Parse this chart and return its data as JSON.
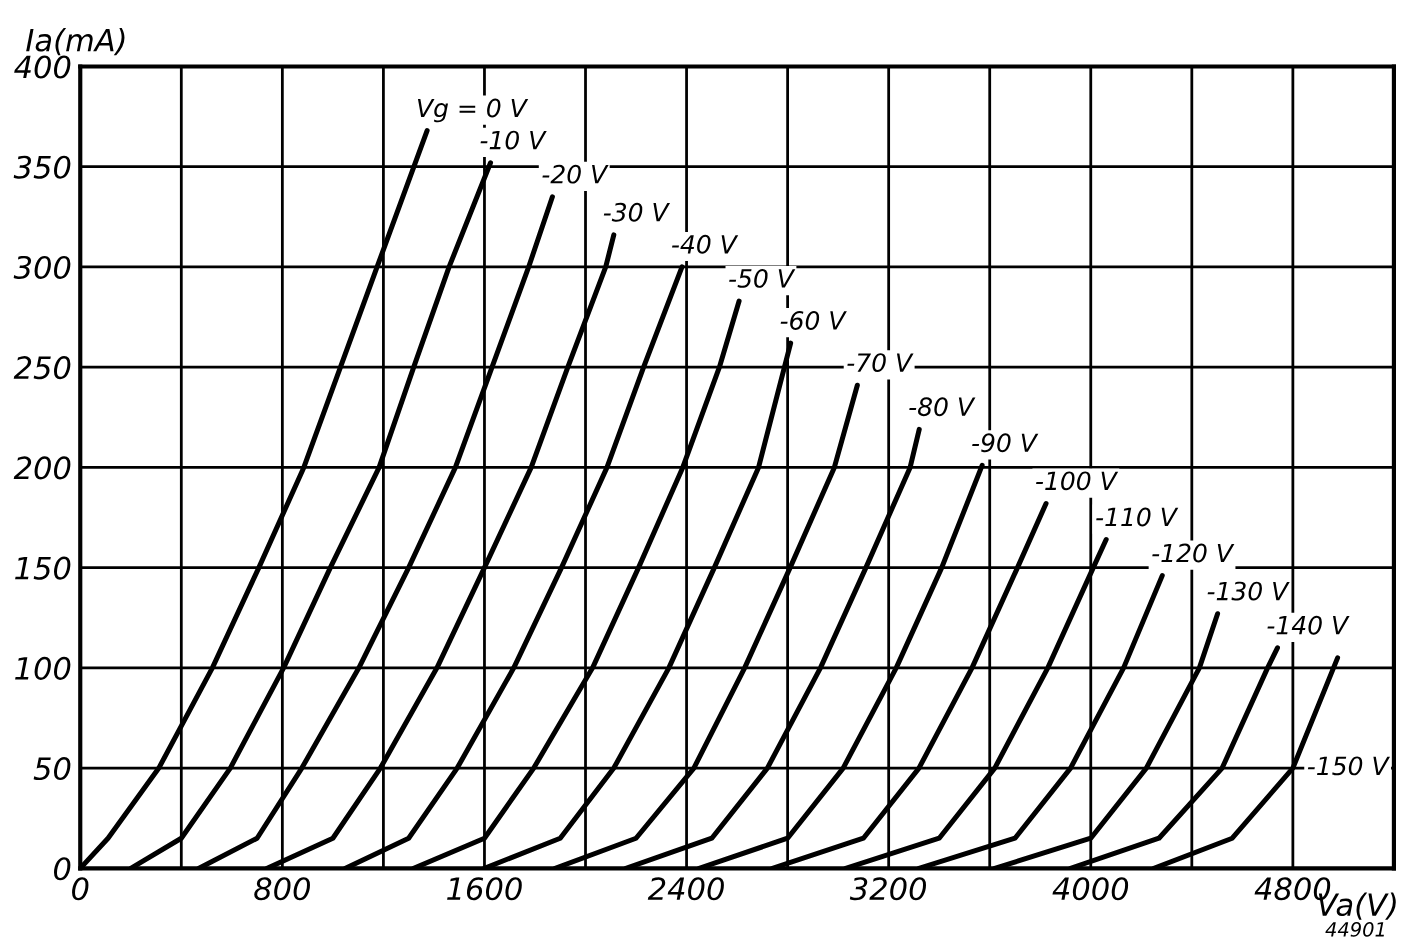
{
  "chart_data": {
    "type": "line",
    "xlabel": "Va(V)",
    "ylabel": "Ia(mA)",
    "xlim": [
      0,
      5200
    ],
    "ylim": [
      0,
      400
    ],
    "xticks": [
      0,
      {
        "value": 400,
        "label": null
      },
      800,
      {
        "value": 1200,
        "label": null
      },
      1600,
      {
        "value": 2000,
        "label": null
      },
      2400,
      {
        "value": 2800,
        "label": null
      },
      3200,
      {
        "value": 3600,
        "label": null
      },
      4000,
      {
        "value": 4400,
        "label": null
      },
      4800,
      {
        "value": 5200,
        "label": null
      }
    ],
    "yticks": [
      0,
      50,
      100,
      150,
      200,
      250,
      300,
      350,
      400
    ],
    "grid": true,
    "legend": false,
    "marker": "none",
    "line_style": "solid",
    "annotations": [
      "44901"
    ],
    "series": [
      {
        "name": "Vg = 0 V",
        "color": "#000000",
        "x": [
          0,
          110,
          311,
          523,
          707,
          885,
          1030,
          1175,
          1373
        ],
        "values": [
          0,
          15,
          50,
          100,
          150,
          200,
          250,
          300,
          368
        ]
      },
      {
        "name": "-10 V",
        "color": "#000000",
        "x": [
          200,
          400,
          594,
          805,
          990,
          1183,
          1320,
          1460,
          1624
        ],
        "values": [
          0,
          15,
          50,
          100,
          150,
          200,
          250,
          300,
          352
        ]
      },
      {
        "name": "-20 V",
        "color": "#000000",
        "x": [
          470,
          700,
          877,
          1103,
          1300,
          1485,
          1630,
          1775,
          1869
        ],
        "values": [
          0,
          15,
          50,
          100,
          150,
          200,
          250,
          300,
          335
        ]
      },
      {
        "name": "-30 V",
        "color": "#000000",
        "x": [
          740,
          1000,
          1188,
          1412,
          1600,
          1785,
          1930,
          2080,
          2112
        ],
        "values": [
          0,
          15,
          50,
          100,
          150,
          200,
          250,
          300,
          316
        ]
      },
      {
        "name": "-40 V",
        "color": "#000000",
        "x": [
          1050,
          1300,
          1492,
          1716,
          1905,
          2085,
          2230,
          2382
        ],
        "values": [
          0,
          15,
          50,
          100,
          150,
          200,
          250,
          300
        ]
      },
      {
        "name": "-50 V",
        "color": "#000000",
        "x": [
          1320,
          1600,
          1795,
          2028,
          2210,
          2385,
          2530,
          2608
        ],
        "values": [
          0,
          15,
          50,
          100,
          150,
          200,
          250,
          283
        ]
      },
      {
        "name": "-60 V",
        "color": "#000000",
        "x": [
          1600,
          1900,
          2112,
          2330,
          2510,
          2685,
          2812
        ],
        "values": [
          0,
          15,
          50,
          100,
          150,
          200,
          262
        ]
      },
      {
        "name": "-70 V",
        "color": "#000000",
        "x": [
          1880,
          2200,
          2429,
          2630,
          2810,
          2985,
          3076
        ],
        "values": [
          0,
          15,
          50,
          100,
          150,
          200,
          241
        ]
      },
      {
        "name": "-80 V",
        "color": "#000000",
        "x": [
          2160,
          2500,
          2720,
          2930,
          3110,
          3285,
          3321
        ],
        "values": [
          0,
          15,
          50,
          100,
          150,
          200,
          219
        ]
      },
      {
        "name": "-90 V",
        "color": "#000000",
        "x": [
          2450,
          2800,
          3020,
          3230,
          3410,
          3570
        ],
        "values": [
          0,
          15,
          50,
          100,
          150,
          201
        ]
      },
      {
        "name": "-100 V",
        "color": "#000000",
        "x": [
          2740,
          3100,
          3320,
          3530,
          3710,
          3823
        ],
        "values": [
          0,
          15,
          50,
          100,
          150,
          182
        ]
      },
      {
        "name": "-110 V",
        "color": "#000000",
        "x": [
          3030,
          3400,
          3620,
          3830,
          4010,
          4061
        ],
        "values": [
          0,
          15,
          50,
          100,
          150,
          164
        ]
      },
      {
        "name": "-120 V",
        "color": "#000000",
        "x": [
          3320,
          3700,
          3920,
          4130,
          4283
        ],
        "values": [
          0,
          15,
          50,
          100,
          146
        ]
      },
      {
        "name": "-130 V",
        "color": "#000000",
        "x": [
          3620,
          4000,
          4220,
          4430,
          4502
        ],
        "values": [
          0,
          15,
          50,
          100,
          127
        ]
      },
      {
        "name": "-140 V",
        "color": "#000000",
        "x": [
          3920,
          4270,
          4520,
          4700,
          4739
        ],
        "values": [
          0,
          15,
          50,
          100,
          110
        ]
      },
      {
        "name": "-150 V",
        "color": "#000000",
        "x": [
          4250,
          4560,
          4800,
          4977
        ],
        "values": [
          0,
          15,
          50,
          105
        ]
      }
    ]
  }
}
